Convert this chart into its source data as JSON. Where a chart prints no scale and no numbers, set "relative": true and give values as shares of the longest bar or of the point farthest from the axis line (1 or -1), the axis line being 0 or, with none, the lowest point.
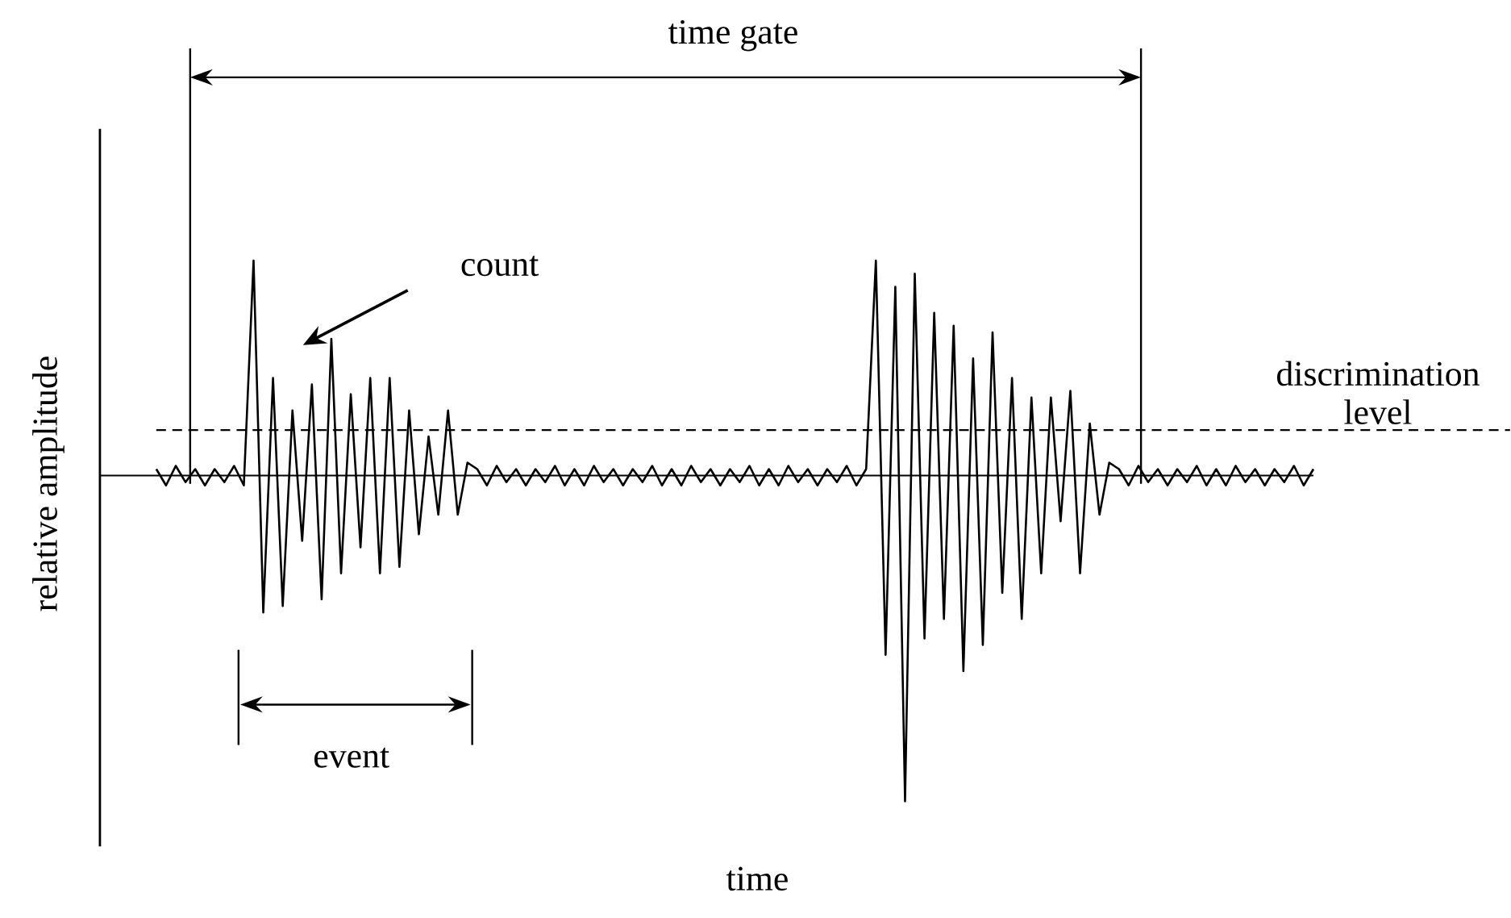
{
  "chart_data": {
    "type": "line",
    "relative": true,
    "xlabel": "time",
    "ylabel": "relative amplitude",
    "categories": [
      null,
      null,
      null,
      null,
      null,
      null,
      null,
      null,
      null,
      null,
      null,
      null,
      null,
      null,
      null,
      null,
      null,
      null,
      null,
      null,
      null,
      null,
      null,
      null,
      null,
      null,
      null,
      null,
      null,
      null,
      null,
      null,
      null,
      null,
      null,
      null,
      null,
      null,
      null,
      null,
      null,
      null,
      null,
      null,
      null,
      null,
      null,
      null,
      null,
      null,
      null,
      null,
      null,
      null,
      null,
      null,
      null,
      null,
      null,
      null,
      null,
      null,
      null,
      null,
      null,
      null,
      null,
      null,
      null,
      null,
      null,
      null,
      null,
      null,
      null,
      null,
      null,
      null,
      null,
      null,
      null,
      null,
      null,
      null,
      null,
      null,
      null,
      null,
      null,
      null,
      null,
      null,
      null,
      null,
      null,
      null,
      null,
      null,
      null,
      null,
      null,
      null,
      null,
      null,
      null,
      null,
      null,
      null,
      null,
      null,
      null,
      null,
      null,
      null,
      null,
      null,
      null,
      null,
      null,
      null
    ],
    "series": [
      {
        "color": "#000000",
        "line_style": "solid",
        "values": [
          0.02,
          -0.03,
          0.03,
          -0.02,
          0.02,
          -0.03,
          0.02,
          -0.02,
          0.03,
          -0.03,
          0.66,
          -0.42,
          0.3,
          -0.4,
          0.2,
          -0.2,
          0.28,
          -0.38,
          0.42,
          -0.3,
          0.25,
          -0.22,
          0.3,
          -0.3,
          0.3,
          -0.28,
          0.2,
          -0.18,
          0.12,
          -0.12,
          0.2,
          -0.12,
          0.04,
          0.02,
          -0.03,
          0.03,
          -0.02,
          0.02,
          -0.03,
          0.02,
          -0.02,
          0.03,
          -0.03,
          0.02,
          -0.03,
          0.03,
          -0.02,
          0.02,
          -0.03,
          0.02,
          -0.02,
          0.03,
          -0.03,
          0.02,
          -0.03,
          0.03,
          -0.02,
          0.02,
          -0.03,
          0.02,
          -0.02,
          0.03,
          -0.03,
          0.02,
          -0.03,
          0.03,
          -0.02,
          0.02,
          -0.03,
          0.02,
          -0.02,
          0.03,
          -0.03,
          0.02,
          0.66,
          -0.55,
          0.58,
          -1,
          0.62,
          -0.5,
          0.5,
          -0.44,
          0.46,
          -0.6,
          0.36,
          -0.52,
          0.44,
          -0.36,
          0.3,
          -0.44,
          0.24,
          -0.3,
          0.24,
          -0.14,
          0.26,
          -0.3,
          0.16,
          -0.12,
          0.04,
          0.02,
          -0.03,
          0.03,
          -0.02,
          0.02,
          -0.03,
          0.02,
          -0.02,
          0.03,
          -0.03,
          0.02,
          -0.03,
          0.03,
          -0.02,
          0.02,
          -0.03,
          0.02,
          -0.02,
          0.03,
          -0.03,
          0.02
        ]
      }
    ],
    "ref_lines": [
      {
        "axis": "y",
        "value": 0.14,
        "label": "discrimination level",
        "line_style": "dashed"
      }
    ],
    "annotations": [
      "time gate",
      "count",
      "event"
    ]
  }
}
